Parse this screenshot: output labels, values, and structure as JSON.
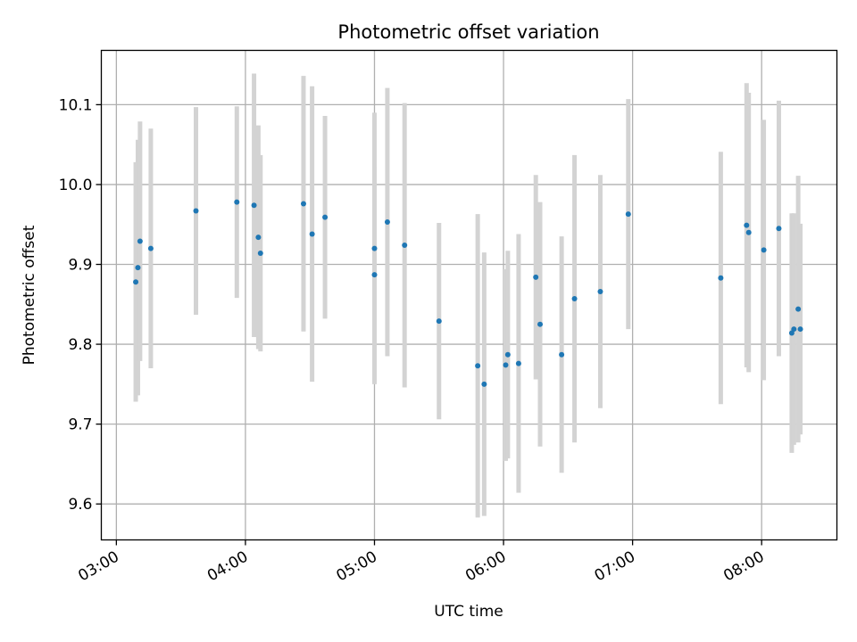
{
  "chart_data": {
    "type": "scatter",
    "title": "Photometric offset variation",
    "xlabel": "UTC time",
    "ylabel": "Photometric offset",
    "x_unit": "UTC time (HH:MM)",
    "xlim": [
      "02:53",
      "08:35"
    ],
    "ylim": [
      9.555,
      10.168
    ],
    "x_ticks": [
      "03:00",
      "04:00",
      "05:00",
      "06:00",
      "07:00",
      "08:00"
    ],
    "y_ticks": [
      9.6,
      9.7,
      9.8,
      9.9,
      10.0,
      10.1
    ],
    "y_tick_labels": [
      "9.6",
      "9.7",
      "9.8",
      "9.9",
      "10.0",
      "10.1"
    ],
    "grid": true,
    "legend": "none",
    "point_color": "#1f77b4",
    "errorbar_color": "#d3d3d3",
    "series": [
      {
        "points": [
          {
            "x": "03:09",
            "y": 9.878,
            "err": 0.15
          },
          {
            "x": "03:10",
            "y": 9.896,
            "err": 0.16
          },
          {
            "x": "03:11",
            "y": 9.929,
            "err": 0.15
          },
          {
            "x": "03:16",
            "y": 9.92,
            "err": 0.15
          },
          {
            "x": "03:37",
            "y": 9.967,
            "err": 0.13
          },
          {
            "x": "03:56",
            "y": 9.978,
            "err": 0.12
          },
          {
            "x": "04:04",
            "y": 9.974,
            "err": 0.165
          },
          {
            "x": "04:06",
            "y": 9.934,
            "err": 0.14
          },
          {
            "x": "04:07",
            "y": 9.914,
            "err": 0.123
          },
          {
            "x": "04:27",
            "y": 9.976,
            "err": 0.16
          },
          {
            "x": "04:31",
            "y": 9.938,
            "err": 0.185
          },
          {
            "x": "04:37",
            "y": 9.959,
            "err": 0.127
          },
          {
            "x": "05:00",
            "y": 9.92,
            "err": 0.17
          },
          {
            "x": "05:00",
            "y": 9.887,
            "err": 0.135
          },
          {
            "x": "05:06",
            "y": 9.953,
            "err": 0.168
          },
          {
            "x": "05:14",
            "y": 9.924,
            "err": 0.178
          },
          {
            "x": "05:30",
            "y": 9.829,
            "err": 0.123
          },
          {
            "x": "05:48",
            "y": 9.773,
            "err": 0.19
          },
          {
            "x": "05:51",
            "y": 9.75,
            "err": 0.165
          },
          {
            "x": "06:01",
            "y": 9.774,
            "err": 0.12
          },
          {
            "x": "06:02",
            "y": 9.787,
            "err": 0.13
          },
          {
            "x": "06:07",
            "y": 9.776,
            "err": 0.162
          },
          {
            "x": "06:15",
            "y": 9.884,
            "err": 0.128
          },
          {
            "x": "06:17",
            "y": 9.825,
            "err": 0.153
          },
          {
            "x": "06:27",
            "y": 9.787,
            "err": 0.148
          },
          {
            "x": "06:33",
            "y": 9.857,
            "err": 0.18
          },
          {
            "x": "06:45",
            "y": 9.866,
            "err": 0.146
          },
          {
            "x": "06:58",
            "y": 9.963,
            "err": 0.144
          },
          {
            "x": "07:41",
            "y": 9.883,
            "err": 0.158
          },
          {
            "x": "07:53",
            "y": 9.949,
            "err": 0.178
          },
          {
            "x": "07:54",
            "y": 9.94,
            "err": 0.175
          },
          {
            "x": "08:01",
            "y": 9.918,
            "err": 0.163
          },
          {
            "x": "08:08",
            "y": 9.945,
            "err": 0.16
          },
          {
            "x": "08:14",
            "y": 9.814,
            "err": 0.15
          },
          {
            "x": "08:15",
            "y": 9.819,
            "err": 0.145
          },
          {
            "x": "08:17",
            "y": 9.844,
            "err": 0.167
          },
          {
            "x": "08:18",
            "y": 9.819,
            "err": 0.132
          }
        ]
      }
    ]
  }
}
